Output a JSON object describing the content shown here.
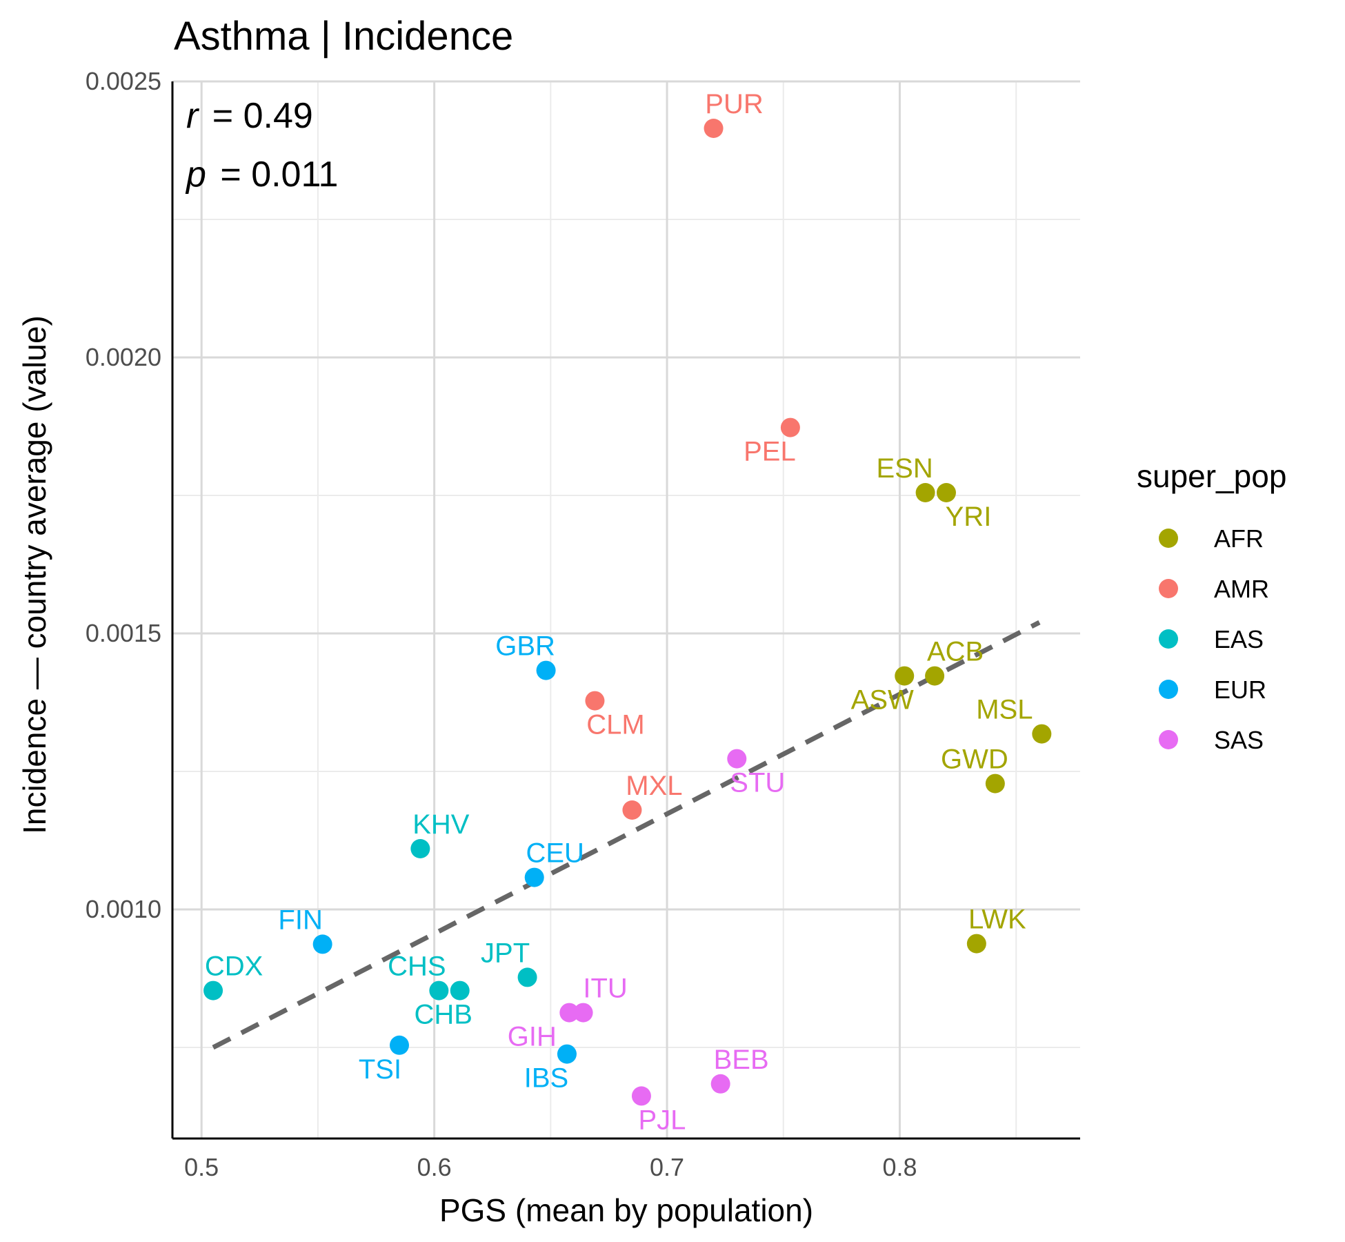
{
  "chart_data": {
    "type": "scatter",
    "title": "Asthma | Incidence",
    "xlabel": "PGS (mean by population)",
    "ylabel": "Incidence — country average (value)",
    "xlim": [
      0.4875,
      0.8775
    ],
    "ylim": [
      0.000585,
      0.0025
    ],
    "x_ticks": [
      0.5,
      0.6,
      0.7,
      0.8
    ],
    "x_tick_labels": [
      "0.5",
      "0.6",
      "0.7",
      "0.8"
    ],
    "y_ticks": [
      0.001,
      0.0015,
      0.002,
      0.0025
    ],
    "y_tick_labels": [
      "0.0010",
      "0.0015",
      "0.0020",
      "0.0025"
    ],
    "grid": true,
    "annotations": {
      "r_symbol": "r",
      "r_value": "= 0.49",
      "p_symbol": "p",
      "p_value": "= 0.011"
    },
    "trend_line": {
      "style": "dashed",
      "x": [
        0.505,
        0.86
      ],
      "y": [
        0.00075,
        0.00152
      ]
    },
    "legend": {
      "title": "super_pop",
      "position": "right",
      "entries": [
        {
          "name": "AFR",
          "color": "#a3a500"
        },
        {
          "name": "AMR",
          "color": "#f8766d"
        },
        {
          "name": "EAS",
          "color": "#00bfc4"
        },
        {
          "name": "EUR",
          "color": "#00b0f6"
        },
        {
          "name": "SAS",
          "color": "#e76bf3"
        }
      ]
    },
    "points": [
      {
        "label": "PUR",
        "group": "AMR",
        "x": 0.72,
        "y": 0.002415
      },
      {
        "label": "PEL",
        "group": "AMR",
        "x": 0.753,
        "y": 0.001873
      },
      {
        "label": "CLM",
        "group": "AMR",
        "x": 0.669,
        "y": 0.001378
      },
      {
        "label": "MXL",
        "group": "AMR",
        "x": 0.685,
        "y": 0.00118
      },
      {
        "label": "ESN",
        "group": "AFR",
        "x": 0.811,
        "y": 0.001755
      },
      {
        "label": "YRI",
        "group": "AFR",
        "x": 0.82,
        "y": 0.001755
      },
      {
        "label": "ACB",
        "group": "AFR",
        "x": 0.815,
        "y": 0.001423
      },
      {
        "label": "ASW",
        "group": "AFR",
        "x": 0.802,
        "y": 0.001423
      },
      {
        "label": "MSL",
        "group": "AFR",
        "x": 0.861,
        "y": 0.001318
      },
      {
        "label": "GWD",
        "group": "AFR",
        "x": 0.841,
        "y": 0.001228
      },
      {
        "label": "LWK",
        "group": "AFR",
        "x": 0.833,
        "y": 0.000938
      },
      {
        "label": "GBR",
        "group": "EUR",
        "x": 0.648,
        "y": 0.001433
      },
      {
        "label": "CEU",
        "group": "EUR",
        "x": 0.643,
        "y": 0.001058
      },
      {
        "label": "FIN",
        "group": "EUR",
        "x": 0.552,
        "y": 0.000937
      },
      {
        "label": "TSI",
        "group": "EUR",
        "x": 0.585,
        "y": 0.000754
      },
      {
        "label": "IBS",
        "group": "EUR",
        "x": 0.657,
        "y": 0.000738
      },
      {
        "label": "KHV",
        "group": "EAS",
        "x": 0.594,
        "y": 0.00111
      },
      {
        "label": "CDX",
        "group": "EAS",
        "x": 0.505,
        "y": 0.000853
      },
      {
        "label": "CHS",
        "group": "EAS",
        "x": 0.602,
        "y": 0.000853
      },
      {
        "label": "CHB",
        "group": "EAS",
        "x": 0.611,
        "y": 0.000853
      },
      {
        "label": "JPT",
        "group": "EAS",
        "x": 0.64,
        "y": 0.000877
      },
      {
        "label": "STU",
        "group": "SAS",
        "x": 0.73,
        "y": 0.001273
      },
      {
        "label": "ITU",
        "group": "SAS",
        "x": 0.664,
        "y": 0.000813
      },
      {
        "label": "GIH",
        "group": "SAS",
        "x": 0.658,
        "y": 0.000813
      },
      {
        "label": "BEB",
        "group": "SAS",
        "x": 0.723,
        "y": 0.000684
      },
      {
        "label": "PJL",
        "group": "SAS",
        "x": 0.689,
        "y": 0.000662
      }
    ]
  }
}
